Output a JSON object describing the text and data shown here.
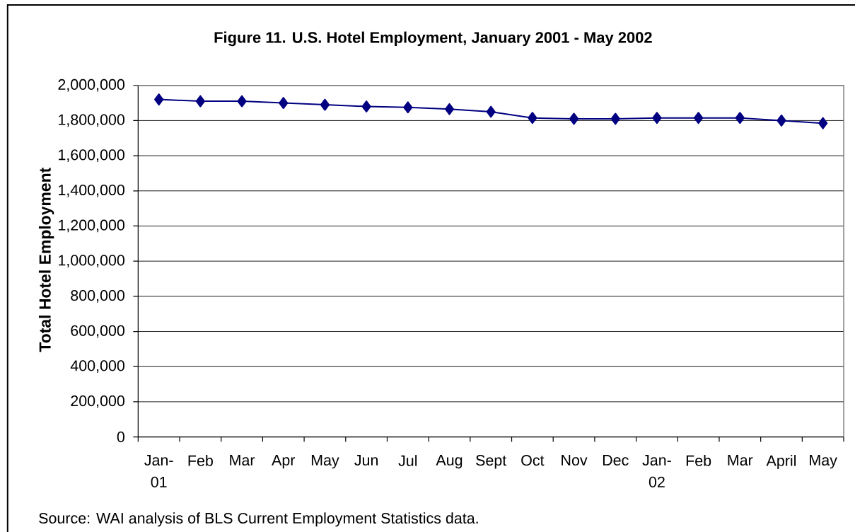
{
  "chart_data": {
    "type": "line",
    "title": "Figure 11. U.S. Hotel Employment, January 2001 - May 2002",
    "ylabel": "Total Hotel Employment",
    "annotations": [
      "Source: WAI analysis of BLS Current Employment Statistics data."
    ],
    "categories": [
      "Jan-01",
      "Feb",
      "Mar",
      "Apr",
      "May",
      "Jun",
      "Jul",
      "Aug",
      "Sept",
      "Oct",
      "Nov",
      "Dec",
      "Jan-02",
      "Feb",
      "Mar",
      "April",
      "May"
    ],
    "values": [
      1920000,
      1910000,
      1910000,
      1900000,
      1890000,
      1880000,
      1875000,
      1865000,
      1850000,
      1815000,
      1810000,
      1810000,
      1815000,
      1815000,
      1815000,
      1800000,
      1785000
    ],
    "color": "#000080",
    "marker": "diamond",
    "line_style": "solid",
    "grid": "y",
    "ylim": [
      0,
      2000000
    ],
    "yticks": [
      {
        "value": 0,
        "label": "0"
      },
      {
        "value": 200000,
        "label": "200,000"
      },
      {
        "value": 400000,
        "label": "400,000"
      },
      {
        "value": 600000,
        "label": "600,000"
      },
      {
        "value": 800000,
        "label": "800,000"
      },
      {
        "value": 1000000,
        "label": "1,000,000"
      },
      {
        "value": 1200000,
        "label": "1,200,000"
      },
      {
        "value": 1400000,
        "label": "1,400,000"
      },
      {
        "value": 1600000,
        "label": "1,600,000"
      },
      {
        "value": 1800000,
        "label": "1,800,000"
      },
      {
        "value": 2000000,
        "label": "2,000,000"
      }
    ]
  }
}
